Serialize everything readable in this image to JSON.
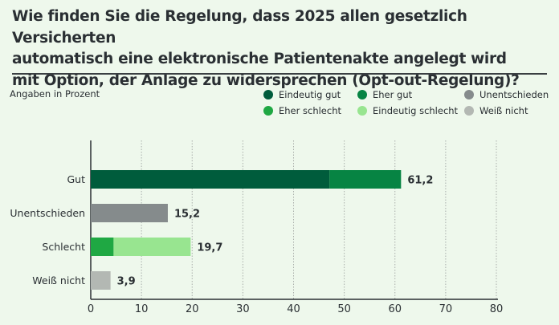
{
  "title_lines": [
    "Wie finden Sie die Regelung, dass 2025 allen gesetzlich Versicherten",
    "automatisch eine elektronische Patientenakte angelegt wird",
    "mit Option, der Anlage zu widersprechen (Opt-out-Regelung)?"
  ],
  "subtitle": "Angaben in Prozent",
  "chart_data": {
    "type": "bar",
    "orientation": "horizontal",
    "stacked": true,
    "title": "Wie finden Sie die Regelung, dass 2025 allen gesetzlich Versicherten automatisch eine elektronische Patientenakte angelegt wird mit Option, der Anlage zu widersprechen (Opt-out-Regelung)?",
    "subtitle": "Angaben in Prozent",
    "categories": [
      "Gut",
      "Unentschieden",
      "Schlecht",
      "Weiß nicht"
    ],
    "series": [
      {
        "name": "Eindeutig gut",
        "color": "#005c3c",
        "values": [
          47.1,
          0,
          0,
          0
        ]
      },
      {
        "name": "Eher gut",
        "color": "#078443",
        "values": [
          14.1,
          0,
          0,
          0
        ]
      },
      {
        "name": "Unentschieden",
        "color": "#858b8c",
        "values": [
          0,
          15.2,
          0,
          0
        ]
      },
      {
        "name": "Eher schlecht",
        "color": "#1fa843",
        "values": [
          0,
          0,
          4.5,
          0
        ]
      },
      {
        "name": "Eindeutig schlecht",
        "color": "#98e590",
        "values": [
          0,
          0,
          15.2,
          0
        ]
      },
      {
        "name": "Weiß nicht",
        "color": "#b3b8b3",
        "values": [
          0,
          0,
          0,
          3.9
        ]
      }
    ],
    "totals": [
      "61,2",
      "15,2",
      "19,7",
      "3,9"
    ],
    "xlim": [
      0,
      80
    ],
    "xticks": [
      "0",
      "10",
      "20",
      "30",
      "40",
      "50",
      "60",
      "70",
      "80"
    ],
    "grid": "vertical dotted",
    "legend_position": "top-right"
  }
}
